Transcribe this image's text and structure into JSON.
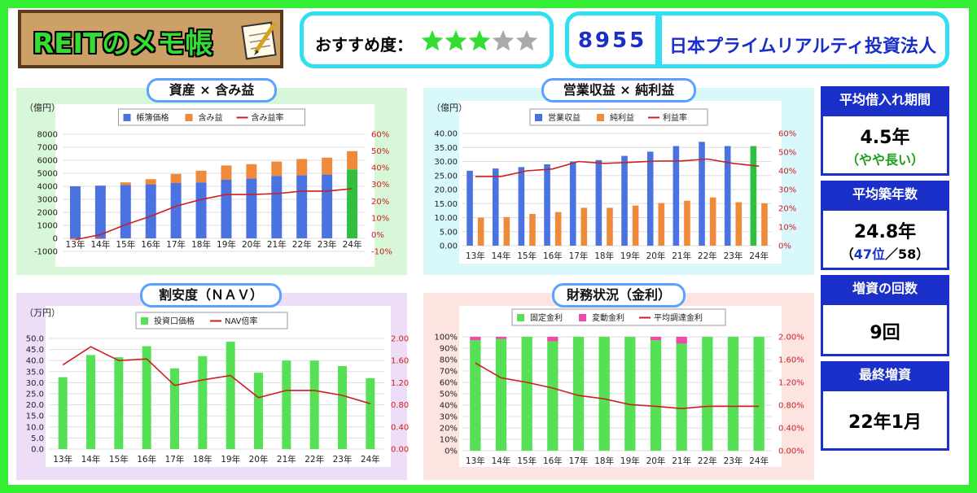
{
  "header": {
    "logo_text": "REITのメモ帳",
    "recommend_label": "おすすめ度：",
    "stars_filled": 3,
    "stars_total": 5,
    "code": "8955",
    "fund_name": "日本プライムリアルティ投資法人"
  },
  "colors": {
    "border_green": "#33ee33",
    "navy": "#1a30c8",
    "cyan": "#30e0f0"
  },
  "sidebar": [
    {
      "title": "平均借入れ期間",
      "value": "4.5年",
      "sub": "（やや長い）"
    },
    {
      "title": "平均築年数",
      "value": "24.8年",
      "sub_open": "（",
      "sub_rank": "47位",
      "sub_rest": "／58）"
    },
    {
      "title": "増資の回数",
      "value": "9回"
    },
    {
      "title": "最終増資",
      "value": "22年1月"
    }
  ],
  "chart_data": [
    {
      "type": "bar",
      "title": "資産 × 含み益",
      "unit_label": "（億円）",
      "categories": [
        "13年",
        "14年",
        "15年",
        "16年",
        "17年",
        "18年",
        "19年",
        "20年",
        "21年",
        "22年",
        "23年",
        "24年"
      ],
      "left_axis": {
        "min": -1000,
        "max": 8000,
        "step": 1000,
        "ticks": [
          "-1000",
          "0",
          "1000",
          "2000",
          "3000",
          "4000",
          "5000",
          "6000",
          "7000",
          "8000"
        ]
      },
      "right_axis": {
        "min": -10,
        "max": 60,
        "step": 10,
        "ticks": [
          "-10%",
          "0%",
          "10%",
          "20%",
          "30%",
          "40%",
          "50%",
          "60%"
        ]
      },
      "series": [
        {
          "name": "帳簿価格",
          "kind": "bar",
          "stack": true,
          "values": [
            4000,
            4050,
            4100,
            4150,
            4250,
            4300,
            4500,
            4600,
            4800,
            4850,
            4900,
            5300
          ]
        },
        {
          "name": "含み益",
          "kind": "bar",
          "stack": true,
          "values": [
            -100,
            -50,
            200,
            400,
            700,
            900,
            1100,
            1100,
            1100,
            1250,
            1300,
            1400
          ]
        },
        {
          "name": "含み益率",
          "kind": "line",
          "axis": "right",
          "values": [
            -3,
            0,
            6,
            11,
            17,
            21,
            24,
            24,
            24.5,
            26,
            26,
            27.5
          ]
        }
      ],
      "colors": {
        "帳簿価格": "#4a72e0",
        "含み益": "#ee8a3a",
        "含み益率": "#cc1f1f",
        "latest": "#2fc040"
      }
    },
    {
      "type": "bar",
      "title": "営業収益 × 純利益",
      "unit_label": "（億円）",
      "categories": [
        "13年",
        "14年",
        "15年",
        "16年",
        "17年",
        "18年",
        "19年",
        "20年",
        "21年",
        "22年",
        "23年",
        "24年"
      ],
      "left_axis": {
        "min": 0,
        "max": 40,
        "step": 5,
        "ticks": [
          "0.00",
          "5.00",
          "10.00",
          "15.00",
          "20.00",
          "25.00",
          "30.00",
          "35.00",
          "40.00"
        ]
      },
      "right_axis": {
        "min": 0,
        "max": 60,
        "step": 10,
        "ticks": [
          "0%",
          "10%",
          "20%",
          "30%",
          "40%",
          "50%",
          "60%"
        ]
      },
      "series": [
        {
          "name": "営業収益",
          "kind": "bar",
          "values": [
            26.7,
            27.5,
            28,
            29,
            30,
            30.5,
            32,
            33.5,
            35.5,
            37,
            35.5,
            35.5
          ]
        },
        {
          "name": "純利益",
          "kind": "bar",
          "values": [
            10,
            10.2,
            11.3,
            12,
            13.5,
            13.5,
            14.3,
            15.2,
            16,
            17.2,
            15.5,
            15.1
          ]
        },
        {
          "name": "利益率",
          "kind": "line",
          "axis": "right",
          "values": [
            37,
            37,
            40,
            41,
            45,
            44,
            44.5,
            45.2,
            45.3,
            46.3,
            44,
            42.5
          ]
        }
      ],
      "colors": {
        "営業収益": "#4a72e0",
        "純利益": "#ee8a3a",
        "利益率": "#cc1f1f",
        "latest": "#2fc040"
      }
    },
    {
      "type": "bar",
      "title": "割安度（ＮＡＶ）",
      "unit_label": "（万円）",
      "categories": [
        "13年",
        "14年",
        "15年",
        "16年",
        "17年",
        "18年",
        "19年",
        "20年",
        "21年",
        "22年",
        "23年",
        "24年"
      ],
      "left_axis": {
        "min": 0,
        "max": 50,
        "step": 5,
        "ticks": [
          "0.0",
          "5.0",
          "10.0",
          "15.0",
          "20.0",
          "25.0",
          "30.0",
          "35.0",
          "40.0",
          "45.0",
          "50.0"
        ]
      },
      "right_axis": {
        "min": 0,
        "max": 2,
        "step": 0.4,
        "ticks": [
          "0.00",
          "0.40",
          "0.80",
          "1.20",
          "1.60",
          "2.00"
        ]
      },
      "series": [
        {
          "name": "投資口価格",
          "kind": "bar",
          "values": [
            32.5,
            42.5,
            41.5,
            46.5,
            36.5,
            42,
            48.5,
            34.5,
            40,
            40,
            37.5,
            32
          ]
        },
        {
          "name": "NAV倍率",
          "kind": "line",
          "axis": "right",
          "values": [
            1.52,
            1.85,
            1.6,
            1.63,
            1.15,
            1.25,
            1.33,
            0.93,
            1.06,
            1.06,
            0.97,
            0.82
          ]
        }
      ],
      "colors": {
        "投資口価格": "#55e055",
        "NAV倍率": "#cc1f1f"
      }
    },
    {
      "type": "bar",
      "title": "財務状況（金利）",
      "unit_label": "",
      "categories": [
        "13年",
        "14年",
        "15年",
        "16年",
        "17年",
        "18年",
        "19年",
        "20年",
        "21年",
        "22年",
        "23年",
        "24年"
      ],
      "left_axis": {
        "min": 0,
        "max": 100,
        "step": 10,
        "ticks": [
          "0%",
          "10%",
          "20%",
          "30%",
          "40%",
          "50%",
          "60%",
          "70%",
          "80%",
          "90%",
          "100%"
        ]
      },
      "right_axis": {
        "min": 0,
        "max": 2,
        "step": 0.4,
        "ticks": [
          "0.00%",
          "0.40%",
          "0.80%",
          "1.20%",
          "1.60%",
          "2.00%"
        ]
      },
      "series": [
        {
          "name": "固定金利",
          "kind": "bar",
          "stack": true,
          "values": [
            97,
            98,
            100,
            96,
            100,
            100,
            100,
            97,
            94,
            100,
            100,
            100
          ]
        },
        {
          "name": "変動金利",
          "kind": "bar",
          "stack": true,
          "values": [
            3,
            2,
            0,
            4,
            0,
            0,
            0,
            3,
            6,
            0,
            0,
            0
          ]
        },
        {
          "name": "平均調達金利",
          "kind": "line",
          "axis": "right",
          "values": [
            1.54,
            1.28,
            1.2,
            1.1,
            0.97,
            0.91,
            0.81,
            0.78,
            0.74,
            0.78,
            0.78,
            0.78
          ]
        }
      ],
      "colors": {
        "固定金利": "#55e055",
        "変動金利": "#ee4aaa",
        "平均調達金利": "#cc1f1f"
      }
    }
  ]
}
